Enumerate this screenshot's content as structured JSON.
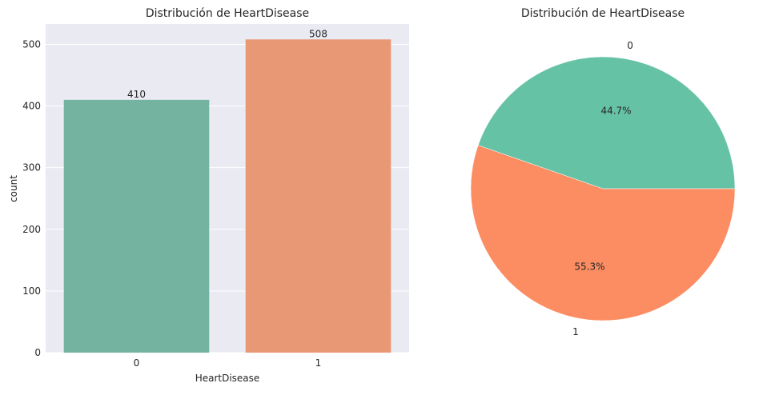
{
  "chart_data": [
    {
      "type": "bar",
      "title": "Distribución de HeartDisease",
      "xlabel": "HeartDisease",
      "ylabel": "count",
      "categories": [
        "0",
        "1"
      ],
      "values": [
        410,
        508
      ],
      "data_labels": [
        "410",
        "508"
      ],
      "colors": [
        "#73b3a0",
        "#e99875"
      ],
      "ylim": [
        0,
        533
      ],
      "yticks": [
        0,
        100,
        200,
        300,
        400,
        500
      ],
      "grid": true,
      "background": "#eaeaf2"
    },
    {
      "type": "pie",
      "title": "Distribución de HeartDisease",
      "categories": [
        "0",
        "1"
      ],
      "values": [
        410,
        508
      ],
      "percent_labels": [
        "44.7%",
        "55.3%"
      ],
      "colors": [
        "#66c2a5",
        "#fc8d62"
      ]
    }
  ]
}
